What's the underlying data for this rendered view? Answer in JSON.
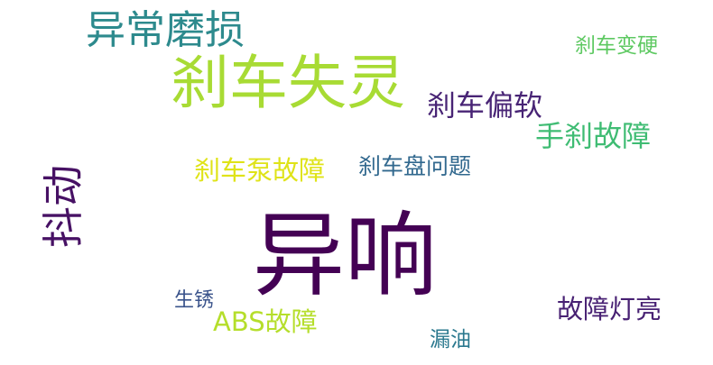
{
  "cloud": {
    "words": [
      {
        "text": "异响",
        "color": "#440154"
      },
      {
        "text": "刹车失灵",
        "color": "#a8db34"
      },
      {
        "text": "异常磨损",
        "color": "#2d8a8d"
      },
      {
        "text": "抖动",
        "color": "#471164"
      },
      {
        "text": "手刹故障",
        "color": "#3fbc73"
      },
      {
        "text": "刹车偏软",
        "color": "#482475"
      },
      {
        "text": "刹车泵故障",
        "color": "#dfe318"
      },
      {
        "text": "刹车盘问题",
        "color": "#31688e"
      },
      {
        "text": "刹车变硬",
        "color": "#5ec962"
      },
      {
        "text": "故障灯亮",
        "color": "#482173"
      },
      {
        "text": "ABS故障",
        "color": "#b5de2b"
      },
      {
        "text": "生锈",
        "color": "#3a538b"
      },
      {
        "text": "漏油",
        "color": "#2a788e"
      }
    ]
  }
}
